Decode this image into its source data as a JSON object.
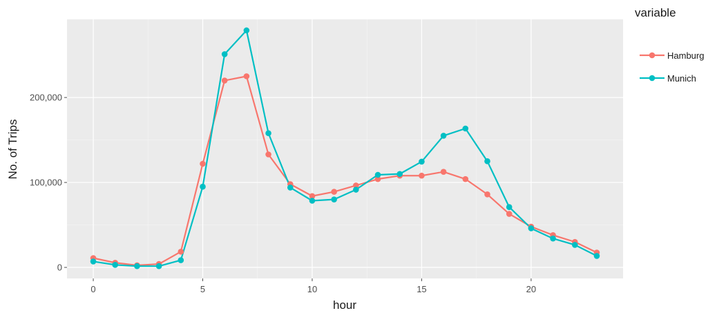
{
  "chart_data": {
    "type": "line",
    "xlabel": "hour",
    "ylabel": "No. of Trips",
    "xlim": [
      -1.2,
      24.2
    ],
    "ylim": [
      -13000,
      292000
    ],
    "x_ticks": [
      0,
      5,
      10,
      15,
      20
    ],
    "x_tick_labels": [
      "0",
      "5",
      "10",
      "15",
      "20"
    ],
    "y_ticks": [
      0,
      100000,
      200000
    ],
    "y_tick_labels": [
      "0",
      "100,000",
      "200,000"
    ],
    "grid": true,
    "legend": {
      "title": "variable",
      "position": "right"
    },
    "x": [
      0,
      1,
      2,
      3,
      4,
      5,
      6,
      7,
      8,
      9,
      10,
      11,
      12,
      13,
      14,
      15,
      16,
      17,
      18,
      19,
      20,
      21,
      22,
      23
    ],
    "series": [
      {
        "name": "Hamburg",
        "color": "#F8766D",
        "values": [
          11000,
          5500,
          2500,
          4000,
          18500,
          122000,
          220000,
          225000,
          133000,
          98000,
          84000,
          89000,
          96500,
          104000,
          108000,
          108000,
          112500,
          104000,
          86000,
          63000,
          48000,
          38000,
          30000,
          17500
        ]
      },
      {
        "name": "Munich",
        "color": "#00BFC4",
        "values": [
          7000,
          3000,
          1500,
          1500,
          8500,
          95000,
          251000,
          279000,
          158000,
          94000,
          78500,
          80000,
          91500,
          109000,
          110000,
          124500,
          155000,
          163500,
          125000,
          71000,
          46000,
          34000,
          26500,
          13500
        ]
      }
    ]
  }
}
